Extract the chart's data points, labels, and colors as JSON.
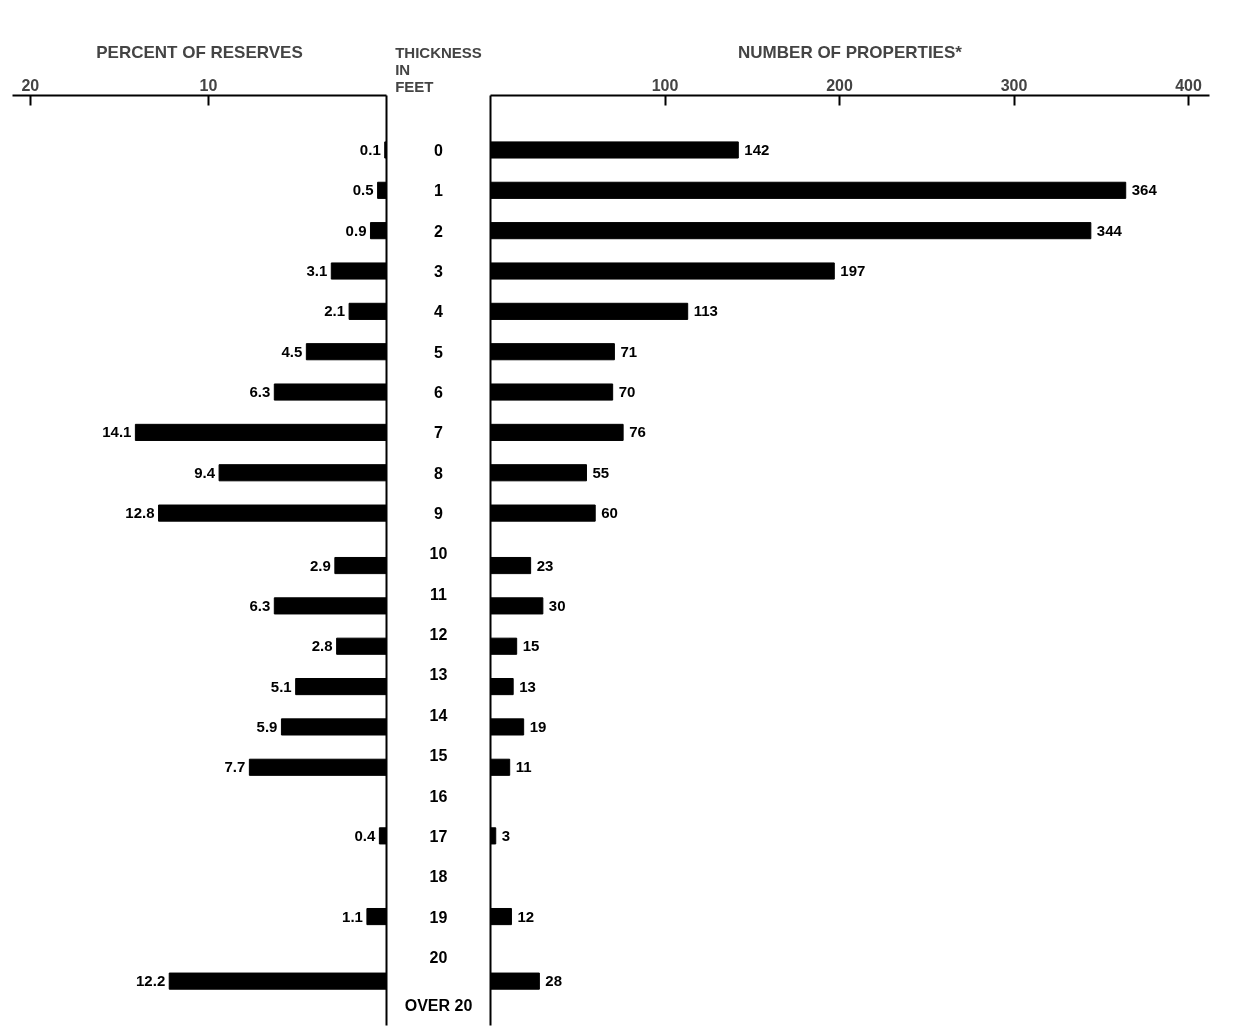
{
  "chart_data": [
    {
      "type": "bar",
      "orientation": "horizontal",
      "xlabel": "PERCENT OF RESERVES",
      "ylabel": "THICKNESS IN FEET",
      "x": [
        0,
        1,
        2,
        3,
        4,
        5,
        6,
        7,
        8,
        9,
        10.3,
        11.3,
        12.3,
        13.3,
        14.3,
        15.3,
        17,
        19,
        20.6
      ],
      "values": [
        0.1,
        0.5,
        0.9,
        3.1,
        2.1,
        4.5,
        6.3,
        14.1,
        9.4,
        12.8,
        2.9,
        6.3,
        2.8,
        5.1,
        5.9,
        7.7,
        0.4,
        1.1,
        12.2
      ],
      "color": "#000000",
      "xlim": [
        21,
        0
      ],
      "xticks": [
        20,
        10
      ],
      "ylim": [
        21.7,
        -1.35
      ],
      "yticks": [
        0,
        1,
        2,
        3,
        4,
        5,
        6,
        7,
        8,
        9,
        10,
        11,
        12,
        13,
        14,
        15,
        16,
        17,
        18,
        19,
        20,
        {
          "value": 21.2,
          "label": "OVER 20"
        }
      ],
      "data_labels": true
    },
    {
      "type": "bar",
      "orientation": "horizontal",
      "xlabel": "NUMBER OF PROPERTIES*",
      "x": [
        0,
        1,
        2,
        3,
        4,
        5,
        6,
        7,
        8,
        9,
        10.3,
        11.3,
        12.3,
        13.3,
        14.3,
        15.3,
        17,
        19,
        20.6
      ],
      "values": [
        142,
        364,
        344,
        197,
        113,
        71,
        70,
        76,
        55,
        60,
        23,
        30,
        15,
        13,
        19,
        11,
        3,
        12,
        28
      ],
      "color": "#000000",
      "xlim": [
        0,
        412
      ],
      "xticks": [
        100,
        200,
        300,
        400
      ],
      "ylim": [
        21.7,
        -1.35
      ],
      "tick_labels": "x",
      "data_labels": true
    }
  ]
}
